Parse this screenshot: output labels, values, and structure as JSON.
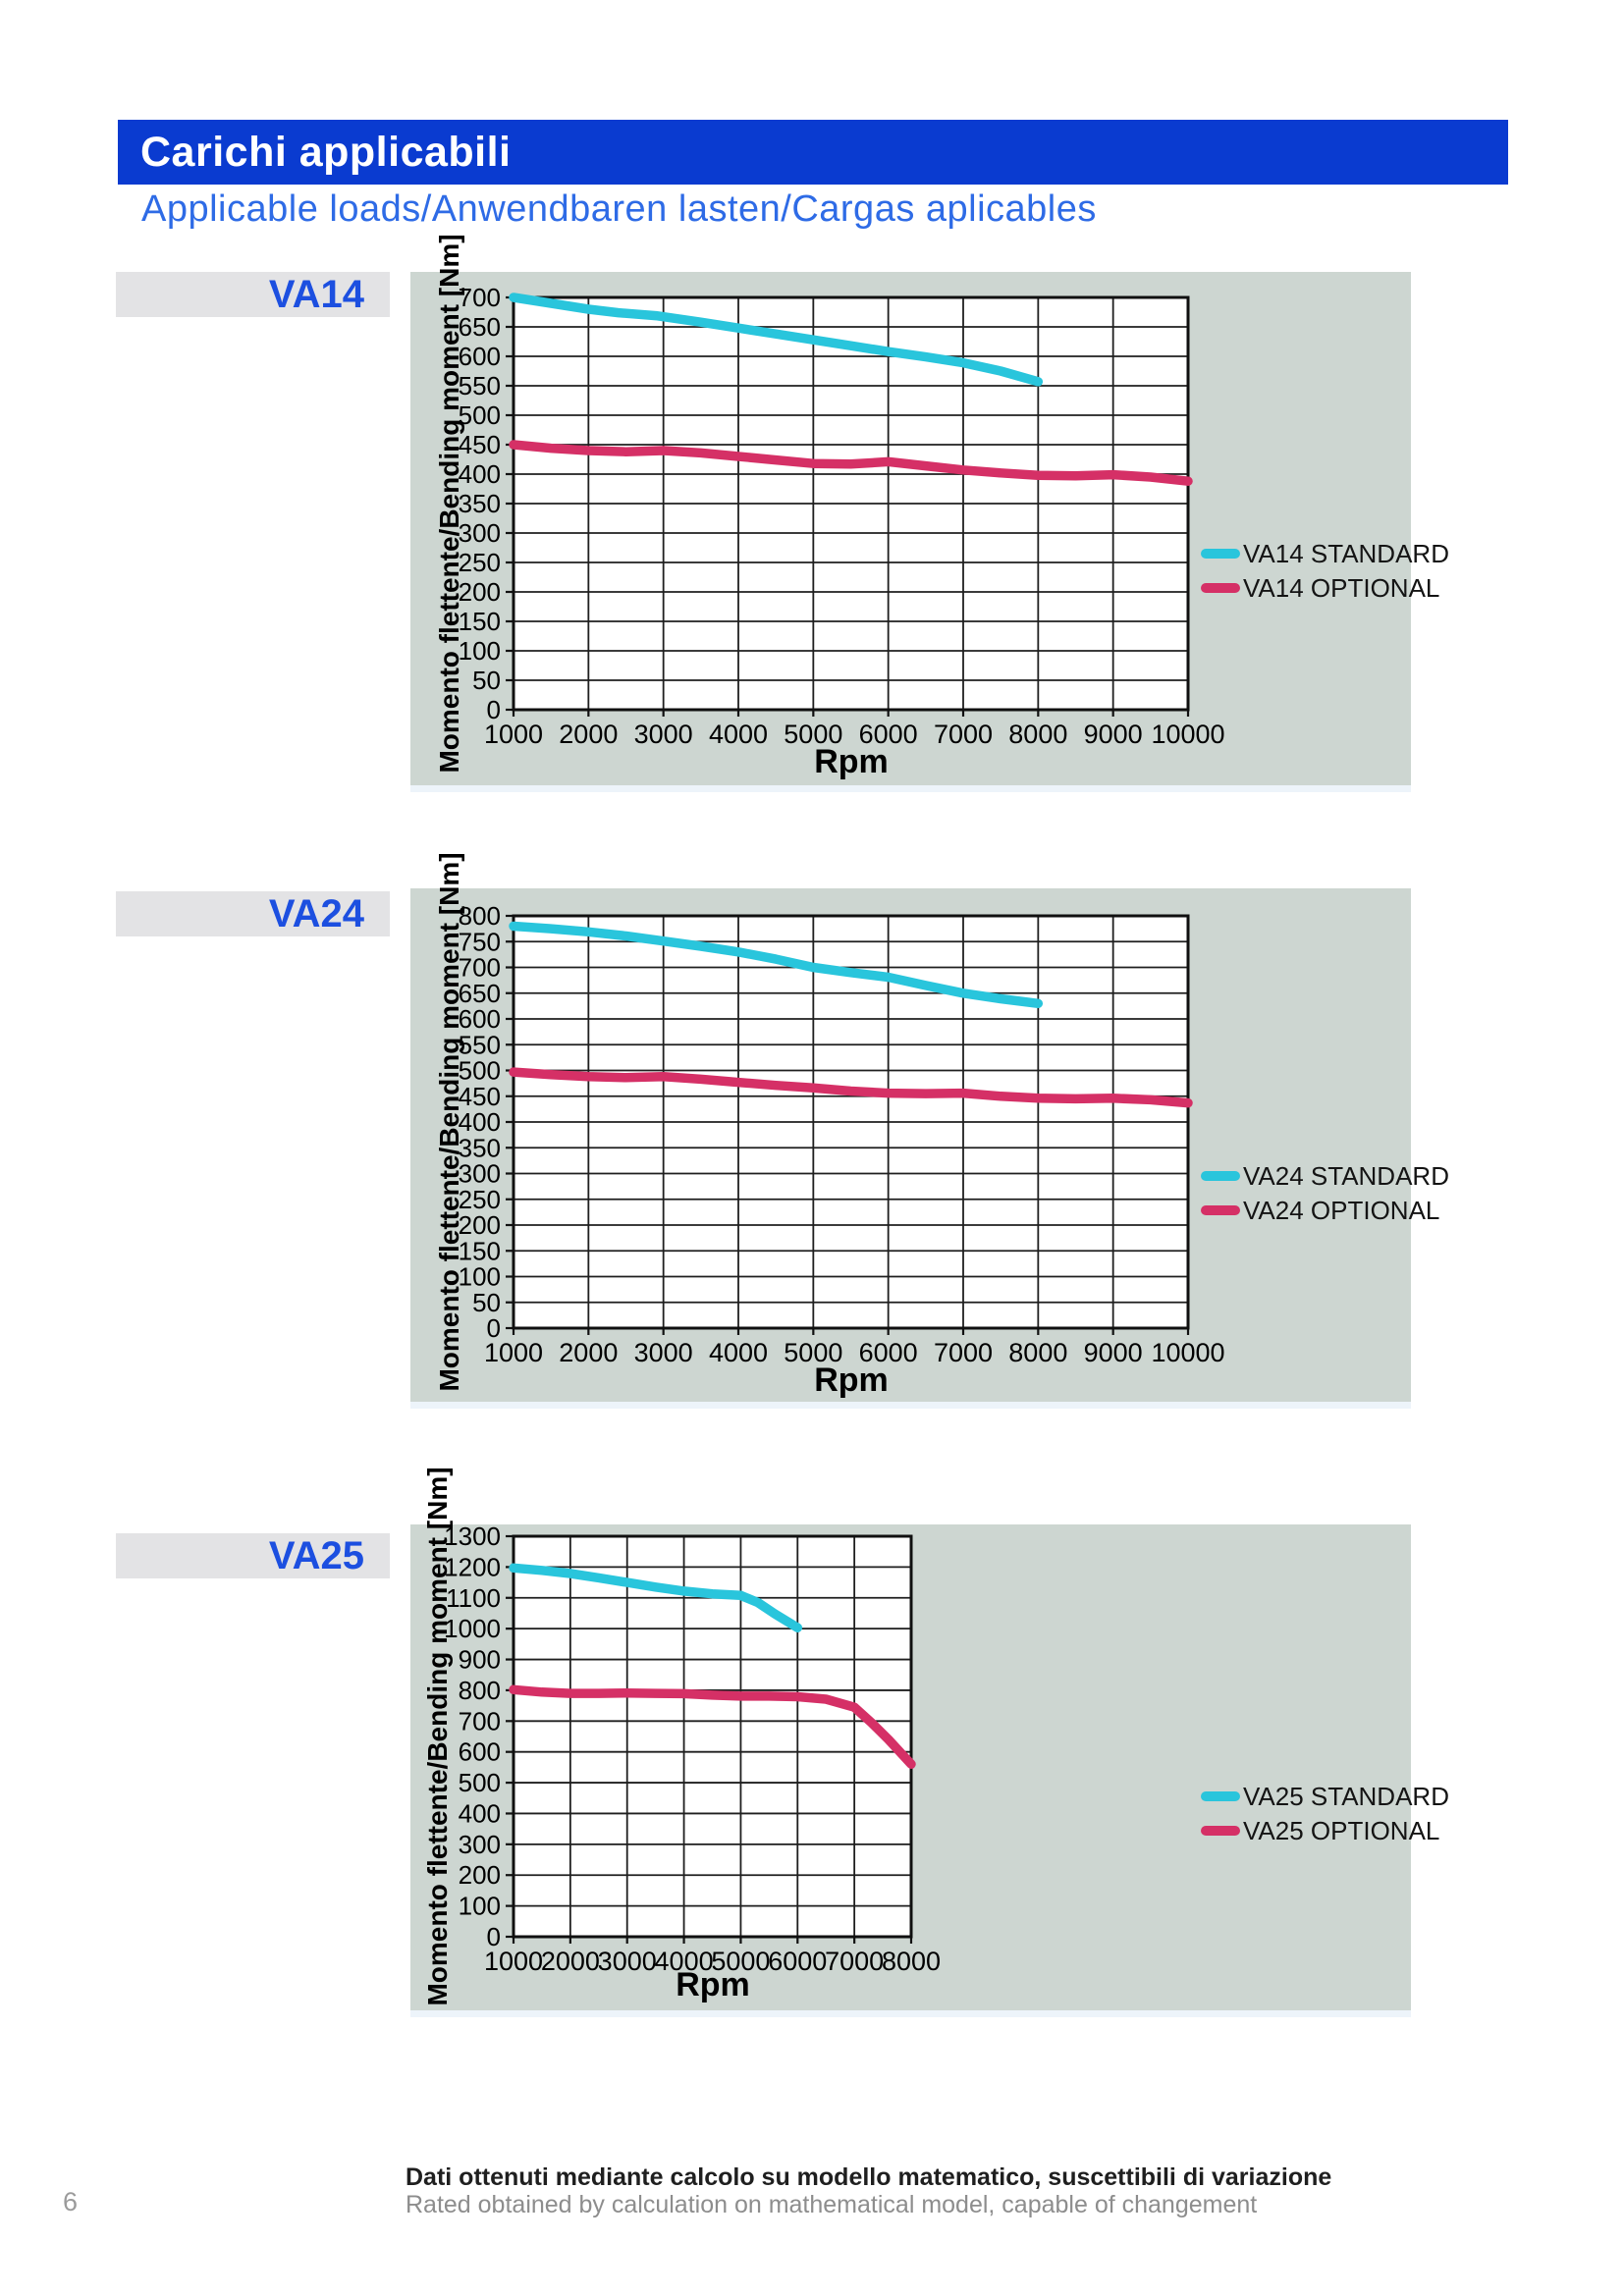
{
  "page": {
    "header_title": "Carichi applicabili",
    "subtitle": "Applicable loads/Anwendbaren lasten/Cargas aplicables",
    "footer_line1": "Dati ottenuti mediante calcolo su modello matematico, suscettibili di variazione",
    "footer_line2": "Rated obtained by calculation on mathematical model, capable of changement",
    "page_number": "6"
  },
  "colors": {
    "header_bar": "#0a3bd0",
    "subtitle_text": "#2e6be6",
    "model_label_text": "#1c4fe0",
    "model_label_bg": "#e3e3e5",
    "panel_bg": "#cdd6d1",
    "standard_line": "#29c5dc",
    "optional_line": "#d53066",
    "grid_line": "#1f1f1f"
  },
  "chart_data": [
    {
      "model": "VA14",
      "type": "line",
      "title": "VA14",
      "xlabel": "Rpm",
      "ylabel": "Momento flettente/Bending moment [Nm]",
      "xlim": [
        1000,
        10000
      ],
      "xtick_step": 1000,
      "ylim": [
        0,
        700
      ],
      "ytick_step": 50,
      "grid": true,
      "legend_position": "right",
      "legend": [
        "VA14 STANDARD",
        "VA14 OPTIONAL"
      ],
      "series": [
        {
          "name": "VA14 STANDARD",
          "role": "standard",
          "points": [
            [
              1000,
              700
            ],
            [
              1500,
              690
            ],
            [
              2000,
              680
            ],
            [
              2400,
              674
            ],
            [
              2900,
              669
            ],
            [
              3500,
              658
            ],
            [
              4000,
              648
            ],
            [
              4500,
              638
            ],
            [
              5000,
              628
            ],
            [
              5500,
              618
            ],
            [
              6000,
              608
            ],
            [
              6500,
              599
            ],
            [
              7000,
              589
            ],
            [
              7500,
              575
            ],
            [
              8000,
              557
            ]
          ]
        },
        {
          "name": "VA14 OPTIONAL",
          "role": "optional",
          "points": [
            [
              1000,
              450
            ],
            [
              1500,
              444
            ],
            [
              2000,
              440
            ],
            [
              2500,
              438
            ],
            [
              3000,
              440
            ],
            [
              3500,
              436
            ],
            [
              4000,
              430
            ],
            [
              4500,
              424
            ],
            [
              5000,
              418
            ],
            [
              5500,
              417
            ],
            [
              6000,
              421
            ],
            [
              6500,
              414
            ],
            [
              7000,
              407
            ],
            [
              7500,
              402
            ],
            [
              8000,
              398
            ],
            [
              8500,
              397
            ],
            [
              9000,
              399
            ],
            [
              9500,
              395
            ],
            [
              10000,
              388
            ]
          ]
        }
      ]
    },
    {
      "model": "VA24",
      "type": "line",
      "title": "VA24",
      "xlabel": "Rpm",
      "ylabel": "Momento flettente/Bending moment [Nm]",
      "xlim": [
        1000,
        10000
      ],
      "xtick_step": 1000,
      "ylim": [
        0,
        800
      ],
      "ytick_step": 50,
      "grid": true,
      "legend_position": "right",
      "legend": [
        "VA24 STANDARD",
        "VA24 OPTIONAL"
      ],
      "series": [
        {
          "name": "VA24 STANDARD",
          "role": "standard",
          "points": [
            [
              1000,
              780
            ],
            [
              1500,
              775
            ],
            [
              2000,
              769
            ],
            [
              2500,
              761
            ],
            [
              3000,
              751
            ],
            [
              3500,
              741
            ],
            [
              4000,
              730
            ],
            [
              4500,
              716
            ],
            [
              5000,
              700
            ],
            [
              5500,
              690
            ],
            [
              6000,
              681
            ],
            [
              6500,
              665
            ],
            [
              7000,
              650
            ],
            [
              7500,
              639
            ],
            [
              8000,
              630
            ]
          ]
        },
        {
          "name": "VA24 OPTIONAL",
          "role": "optional",
          "points": [
            [
              1000,
              497
            ],
            [
              1500,
              492
            ],
            [
              2000,
              488
            ],
            [
              2500,
              486
            ],
            [
              3000,
              488
            ],
            [
              3500,
              483
            ],
            [
              4000,
              477
            ],
            [
              4500,
              471
            ],
            [
              5000,
              466
            ],
            [
              5500,
              460
            ],
            [
              6000,
              456
            ],
            [
              6500,
              455
            ],
            [
              7000,
              456
            ],
            [
              7500,
              450
            ],
            [
              8000,
              446
            ],
            [
              8500,
              445
            ],
            [
              9000,
              446
            ],
            [
              9500,
              443
            ],
            [
              10000,
              437
            ]
          ]
        }
      ]
    },
    {
      "model": "VA25",
      "type": "line",
      "title": "VA25",
      "xlabel": "Rpm",
      "ylabel": "Momento flettente/Bending moment [Nm]",
      "xlim": [
        1000,
        8000
      ],
      "xtick_step": 1000,
      "ylim": [
        0,
        1300
      ],
      "ytick_step": 100,
      "grid": true,
      "legend_position": "right",
      "legend": [
        "VA25 STANDARD",
        "VA25 OPTIONAL"
      ],
      "series": [
        {
          "name": "VA25 STANDARD",
          "role": "standard",
          "points": [
            [
              1000,
              1197
            ],
            [
              1500,
              1189
            ],
            [
              2000,
              1179
            ],
            [
              2500,
              1165
            ],
            [
              3000,
              1150
            ],
            [
              3500,
              1135
            ],
            [
              4000,
              1122
            ],
            [
              4500,
              1113
            ],
            [
              5000,
              1108
            ],
            [
              5300,
              1085
            ],
            [
              5600,
              1048
            ],
            [
              6000,
              1003
            ]
          ]
        },
        {
          "name": "VA25 OPTIONAL",
          "role": "optional",
          "points": [
            [
              1000,
              802
            ],
            [
              1500,
              794
            ],
            [
              2000,
              790
            ],
            [
              2500,
              790
            ],
            [
              3000,
              791
            ],
            [
              3500,
              790
            ],
            [
              4000,
              789
            ],
            [
              4500,
              784
            ],
            [
              5000,
              781
            ],
            [
              5500,
              781
            ],
            [
              6000,
              779
            ],
            [
              6500,
              771
            ],
            [
              7000,
              745
            ],
            [
              7300,
              695
            ],
            [
              7600,
              640
            ],
            [
              8000,
              560
            ]
          ]
        }
      ]
    }
  ]
}
